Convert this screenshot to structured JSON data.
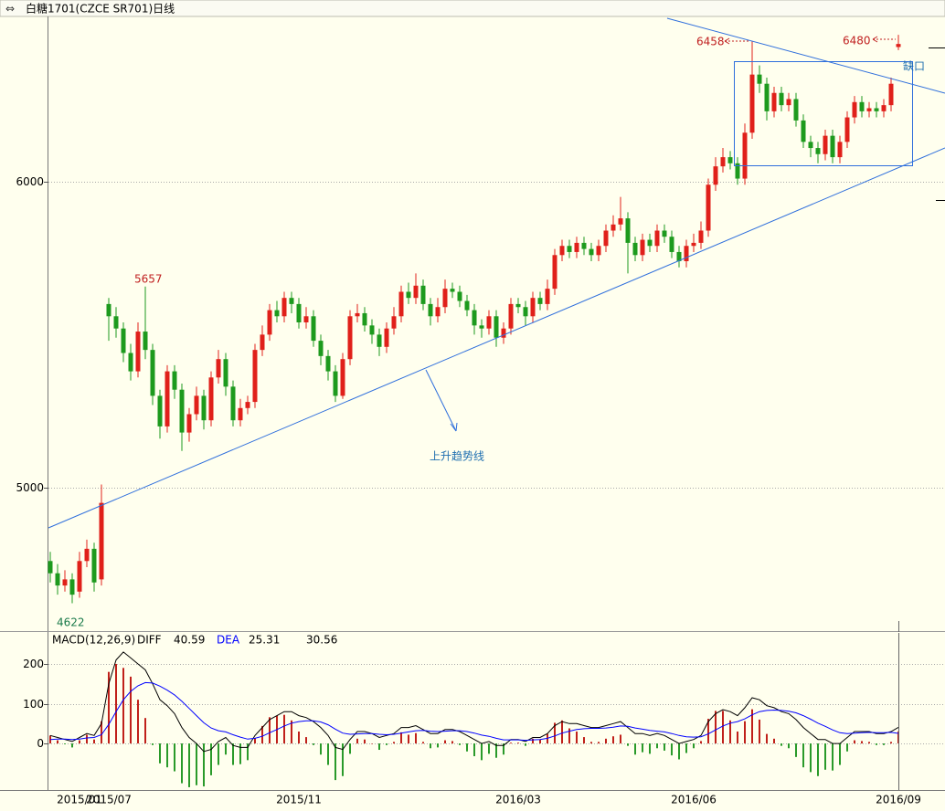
{
  "chart_data": [
    {
      "type": "candlestick",
      "title": "白糖1701(CZCE SR701)日线",
      "categories": [
        null,
        null,
        null,
        null,
        "2015/01",
        null,
        null,
        null,
        "2015/07",
        null,
        null,
        null,
        null,
        null,
        null,
        null,
        null,
        null,
        null,
        null,
        null,
        null,
        null,
        null,
        null,
        null,
        null,
        null,
        null,
        null,
        null,
        null,
        null,
        null,
        "2015/11",
        null,
        null,
        null,
        null,
        null,
        null,
        null,
        null,
        null,
        null,
        null,
        null,
        null,
        null,
        null,
        null,
        null,
        null,
        null,
        null,
        null,
        null,
        null,
        null,
        null,
        null,
        null,
        null,
        null,
        "2016/03",
        null,
        null,
        null,
        null,
        null,
        null,
        null,
        null,
        null,
        null,
        null,
        null,
        null,
        null,
        null,
        null,
        null,
        null,
        null,
        null,
        null,
        null,
        null,
        "2016/06",
        null,
        null,
        null,
        null,
        null,
        null,
        null,
        null,
        null,
        null,
        null,
        null,
        null,
        null,
        null,
        null,
        null,
        null,
        null,
        null,
        null,
        null,
        null,
        null,
        null,
        null,
        null,
        "2016/09"
      ],
      "open": [
        4760,
        4720,
        4680,
        4700,
        4660,
        4760,
        4800,
        4700,
        5600,
        5560,
        5520,
        5440,
        5380,
        5510,
        5450,
        5300,
        5200,
        5380,
        5320,
        5180,
        5240,
        5300,
        5220,
        5360,
        5420,
        5330,
        5220,
        5260,
        5280,
        5450,
        5500,
        5580,
        5560,
        5620,
        5600,
        5540,
        5560,
        5480,
        5430,
        5380,
        5300,
        5420,
        5560,
        5570,
        5530,
        5500,
        5460,
        5520,
        5560,
        5640,
        5620,
        5660,
        5600,
        5560,
        5590,
        5650,
        5640,
        5610,
        5580,
        5530,
        5520,
        5560,
        5490,
        5520,
        5600,
        5590,
        5560,
        5620,
        5600,
        5650,
        5760,
        5790,
        5770,
        5800,
        5780,
        5760,
        5790,
        5840,
        5860,
        5880,
        5800,
        5760,
        5810,
        5790,
        5840,
        5820,
        5770,
        5740,
        5790,
        5800,
        5840,
        5990,
        6050,
        6080,
        6060,
        6010,
        6160,
        6350,
        6320,
        6230,
        6290,
        6250,
        6270,
        6200,
        6130,
        6110,
        6090,
        6150,
        6080,
        6130,
        6210,
        6260,
        6230,
        6240,
        6230,
        6250,
        6440
      ],
      "high": [
        4790,
        4750,
        4730,
        4720,
        4790,
        4830,
        4820,
        5010,
        5620,
        5590,
        5540,
        5470,
        5540,
        5657,
        5470,
        5320,
        5400,
        5400,
        5340,
        5260,
        5330,
        5320,
        5380,
        5450,
        5440,
        5350,
        5290,
        5300,
        5470,
        5530,
        5600,
        5610,
        5640,
        5640,
        5620,
        5590,
        5580,
        5500,
        5450,
        5400,
        5440,
        5580,
        5600,
        5590,
        5550,
        5520,
        5540,
        5590,
        5660,
        5670,
        5700,
        5680,
        5620,
        5620,
        5680,
        5670,
        5660,
        5630,
        5600,
        5550,
        5580,
        5580,
        5540,
        5620,
        5620,
        5610,
        5640,
        5640,
        5680,
        5780,
        5810,
        5810,
        5820,
        5820,
        5800,
        5810,
        5860,
        5890,
        5950,
        5900,
        5820,
        5830,
        5830,
        5860,
        5860,
        5840,
        5790,
        5810,
        5830,
        5870,
        6010,
        6080,
        6110,
        6100,
        6080,
        6190,
        6458,
        6380,
        6340,
        6310,
        6310,
        6290,
        6290,
        6220,
        6150,
        6130,
        6170,
        6170,
        6150,
        6230,
        6280,
        6280,
        6260,
        6260,
        6270,
        6340,
        6480
      ],
      "low": [
        4690,
        4650,
        4660,
        4622,
        4640,
        4740,
        4660,
        4680,
        5480,
        5490,
        5410,
        5350,
        5360,
        5420,
        5270,
        5160,
        5180,
        5290,
        5120,
        5150,
        5220,
        5190,
        5200,
        5340,
        5300,
        5200,
        5200,
        5240,
        5260,
        5430,
        5480,
        5540,
        5540,
        5570,
        5520,
        5520,
        5460,
        5400,
        5350,
        5280,
        5290,
        5400,
        5540,
        5510,
        5470,
        5430,
        5440,
        5500,
        5540,
        5600,
        5600,
        5580,
        5530,
        5540,
        5570,
        5620,
        5590,
        5560,
        5500,
        5490,
        5500,
        5460,
        5470,
        5500,
        5570,
        5530,
        5540,
        5580,
        5580,
        5630,
        5740,
        5750,
        5750,
        5760,
        5740,
        5740,
        5770,
        5820,
        5840,
        5700,
        5740,
        5740,
        5770,
        5770,
        5800,
        5750,
        5720,
        5720,
        5770,
        5780,
        5820,
        5970,
        6030,
        6040,
        5990,
        5990,
        6140,
        6290,
        6200,
        6210,
        6230,
        6230,
        6180,
        6110,
        6080,
        6060,
        6070,
        6060,
        6060,
        6110,
        6190,
        6210,
        6210,
        6210,
        6210,
        6230,
        6430
      ],
      "close": [
        4720,
        4680,
        4700,
        4650,
        4760,
        4800,
        4690,
        4950,
        5560,
        5520,
        5440,
        5380,
        5510,
        5450,
        5300,
        5200,
        5380,
        5320,
        5180,
        5240,
        5300,
        5220,
        5360,
        5420,
        5330,
        5220,
        5260,
        5280,
        5450,
        5500,
        5580,
        5560,
        5620,
        5600,
        5540,
        5560,
        5480,
        5430,
        5380,
        5300,
        5420,
        5560,
        5570,
        5530,
        5500,
        5460,
        5520,
        5560,
        5640,
        5620,
        5660,
        5600,
        5560,
        5590,
        5650,
        5640,
        5610,
        5580,
        5530,
        5520,
        5560,
        5490,
        5520,
        5600,
        5590,
        5560,
        5620,
        5600,
        5650,
        5760,
        5790,
        5770,
        5800,
        5780,
        5760,
        5790,
        5840,
        5860,
        5880,
        5800,
        5760,
        5810,
        5790,
        5840,
        5820,
        5770,
        5740,
        5790,
        5800,
        5840,
        5990,
        6050,
        6080,
        6060,
        6010,
        6160,
        6350,
        6320,
        6230,
        6290,
        6250,
        6270,
        6200,
        6130,
        6110,
        6090,
        6150,
        6080,
        6130,
        6210,
        6260,
        6230,
        6240,
        6230,
        6250,
        6320,
        6450
      ],
      "up_color": "#e0201a",
      "down_color": "#1d9a1d",
      "ylim": [
        4534,
        6540
      ],
      "yticks": [
        5000,
        6000
      ],
      "grid": true,
      "annotations": [
        "上升趋势线",
        "缺口"
      ]
    },
    {
      "type": "macd",
      "title": "MACD(12,26,9)",
      "series": [
        {
          "name": "DIFF",
          "color": "#000000",
          "values": [
            20,
            15,
            10,
            5,
            15,
            25,
            20,
            50,
            150,
            210,
            230,
            215,
            200,
            185,
            150,
            110,
            95,
            75,
            40,
            15,
            0,
            -20,
            -15,
            5,
            15,
            -5,
            -10,
            -10,
            20,
            40,
            60,
            70,
            80,
            80,
            70,
            65,
            55,
            40,
            20,
            -10,
            -15,
            10,
            30,
            30,
            25,
            15,
            20,
            25,
            40,
            40,
            45,
            35,
            25,
            25,
            35,
            35,
            30,
            20,
            10,
            0,
            5,
            -5,
            -5,
            10,
            10,
            5,
            15,
            15,
            25,
            45,
            55,
            50,
            50,
            45,
            40,
            40,
            45,
            50,
            55,
            40,
            25,
            25,
            20,
            25,
            20,
            10,
            0,
            5,
            10,
            20,
            55,
            75,
            85,
            80,
            70,
            90,
            115,
            110,
            95,
            90,
            80,
            75,
            60,
            40,
            25,
            10,
            10,
            0,
            0,
            15,
            30,
            30,
            30,
            25,
            25,
            30,
            40.59
          ]
        },
        {
          "name": "DEA",
          "color": "#0000ff",
          "values": [
            10,
            11,
            11,
            10,
            11,
            14,
            15,
            22,
            48,
            80,
            110,
            131,
            145,
            153,
            152,
            144,
            134,
            122,
            106,
            88,
            70,
            52,
            39,
            32,
            29,
            22,
            16,
            11,
            13,
            18,
            27,
            35,
            44,
            51,
            55,
            57,
            57,
            54,
            47,
            36,
            26,
            23,
            24,
            25,
            25,
            23,
            22,
            23,
            26,
            29,
            32,
            33,
            31,
            30,
            31,
            32,
            32,
            30,
            26,
            21,
            18,
            13,
            9,
            9,
            9,
            8,
            9,
            10,
            13,
            19,
            26,
            31,
            35,
            37,
            38,
            38,
            39,
            41,
            44,
            43,
            39,
            36,
            33,
            31,
            29,
            25,
            20,
            17,
            16,
            17,
            24,
            34,
            44,
            51,
            55,
            62,
            72,
            80,
            83,
            84,
            83,
            81,
            77,
            70,
            61,
            51,
            43,
            34,
            27,
            25,
            26,
            27,
            28,
            27,
            27,
            28,
            25.31
          ]
        }
      ],
      "bars": [
        20,
        8,
        -2,
        -10,
        8,
        22,
        10,
        56,
        180,
        200,
        190,
        168,
        110,
        64,
        -4,
        -50,
        -60,
        -70,
        -100,
        -110,
        -105,
        -108,
        -80,
        -54,
        -28,
        -54,
        -52,
        -42,
        14,
        44,
        66,
        70,
        72,
        58,
        30,
        16,
        -4,
        -28,
        -54,
        -92,
        -82,
        -26,
        12,
        10,
        0,
        -16,
        -4,
        4,
        28,
        22,
        26,
        4,
        -12,
        -10,
        8,
        6,
        -4,
        -20,
        -32,
        -42,
        -26,
        -36,
        -28,
        2,
        2,
        -6,
        12,
        10,
        24,
        52,
        58,
        38,
        30,
        16,
        4,
        4,
        12,
        18,
        22,
        -6,
        -28,
        -22,
        -26,
        -12,
        -18,
        -30,
        -40,
        -24,
        -12,
        6,
        62,
        82,
        82,
        58,
        30,
        56,
        86,
        60,
        24,
        12,
        -6,
        -12,
        -34,
        -60,
        -72,
        -82,
        -66,
        -68,
        -54,
        -20,
        8,
        6,
        4,
        -4,
        -4,
        4,
        30.56
      ],
      "up_color": "#c0201a",
      "down_color": "#2a9a2a",
      "ylim": [
        -117,
        278
      ],
      "yticks": [
        0,
        100,
        200
      ],
      "grid": true
    }
  ]
}
